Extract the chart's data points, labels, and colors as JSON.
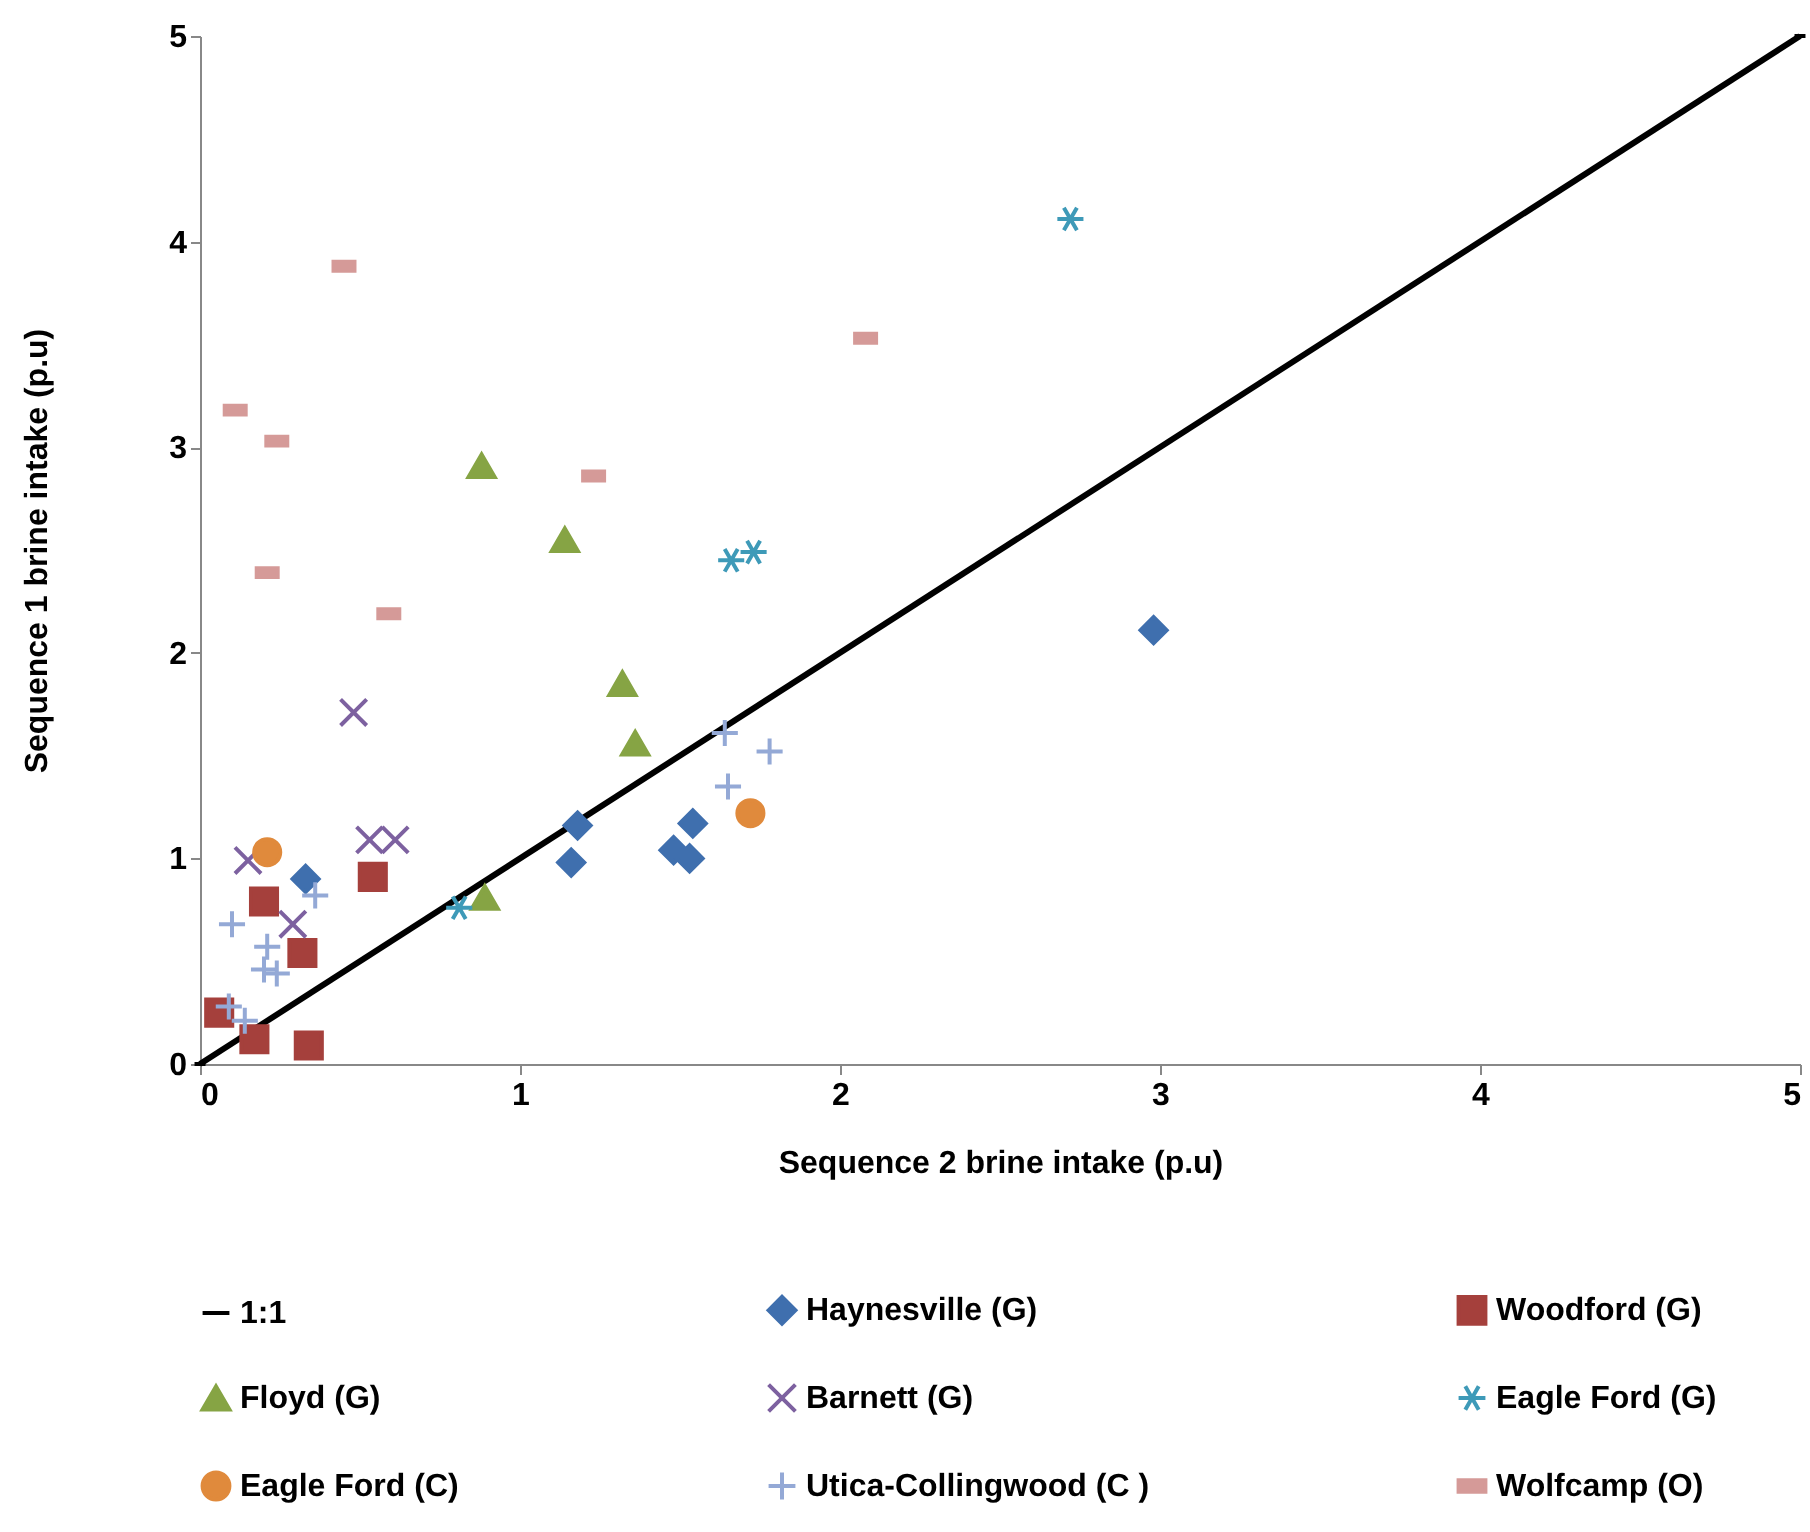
{
  "chart_data": {
    "type": "scatter",
    "xlabel": "Sequence 2 brine intake (p.u)",
    "ylabel": "Sequence 1 brine intake (p.u)",
    "xlim": [
      0,
      5
    ],
    "ylim": [
      0,
      5
    ],
    "xticks": [
      0,
      1,
      2,
      3,
      4,
      5
    ],
    "yticks": [
      0,
      1,
      2,
      3,
      4,
      5
    ],
    "grid": false,
    "legend": "bottom",
    "series": [
      {
        "name": "1:1",
        "type": "line",
        "color": "#000000",
        "marker": "none",
        "x": [
          0,
          5
        ],
        "values": [
          0,
          5
        ]
      },
      {
        "name": "Haynesville (G)",
        "color": "#3f6fae",
        "marker": "diamond",
        "x": [
          0.33,
          1.18,
          1.16,
          1.54,
          1.48,
          1.53,
          2.98
        ],
        "values": [
          0.9,
          1.16,
          0.98,
          1.17,
          1.04,
          1.0,
          2.11
        ]
      },
      {
        "name": "Woodford (G)",
        "color": "#a5403c",
        "marker": "square",
        "x": [
          0.06,
          0.17,
          0.34,
          0.2,
          0.32,
          0.54
        ],
        "values": [
          0.25,
          0.12,
          0.09,
          0.79,
          0.54,
          0.91
        ]
      },
      {
        "name": "Floyd (G)",
        "color": "#86a444",
        "marker": "triangle",
        "x": [
          0.88,
          1.14,
          1.32,
          1.36,
          0.89
        ],
        "values": [
          2.91,
          2.55,
          1.85,
          1.56,
          0.81
        ]
      },
      {
        "name": "Barnett (G)",
        "color": "#7d61a0",
        "marker": "cross",
        "x": [
          0.48,
          0.15,
          0.53,
          0.61,
          0.29
        ],
        "values": [
          1.71,
          0.99,
          1.09,
          1.09,
          0.68
        ]
      },
      {
        "name": "Eagle Ford (G)",
        "color": "#3e9ab8",
        "x": [
          0.81,
          1.66,
          1.73,
          2.72
        ],
        "values": [
          0.76,
          2.45,
          2.49,
          4.11
        ]
      },
      {
        "name": "Eagle Ford (C)",
        "color": "#e08a3c",
        "marker": "circle",
        "x": [
          0.21,
          1.72
        ],
        "values": [
          1.03,
          1.22
        ]
      },
      {
        "name": "Utica-Collingwood (C )",
        "color": "#94a9d6",
        "marker": "plus",
        "x": [
          0.1,
          0.36,
          0.21,
          0.2,
          0.24,
          0.09,
          0.14,
          1.64,
          1.78,
          1.65
        ],
        "values": [
          0.68,
          0.82,
          0.57,
          0.46,
          0.44,
          0.28,
          0.21,
          1.61,
          1.52,
          1.35
        ]
      },
      {
        "name": "Wolfcamp (O)",
        "color": "#d59a98",
        "x": [
          0.45,
          0.11,
          0.24,
          2.08,
          1.23,
          0.21,
          0.59
        ],
        "values": [
          3.88,
          3.18,
          3.03,
          3.53,
          2.86,
          2.39,
          2.19
        ]
      }
    ]
  }
}
